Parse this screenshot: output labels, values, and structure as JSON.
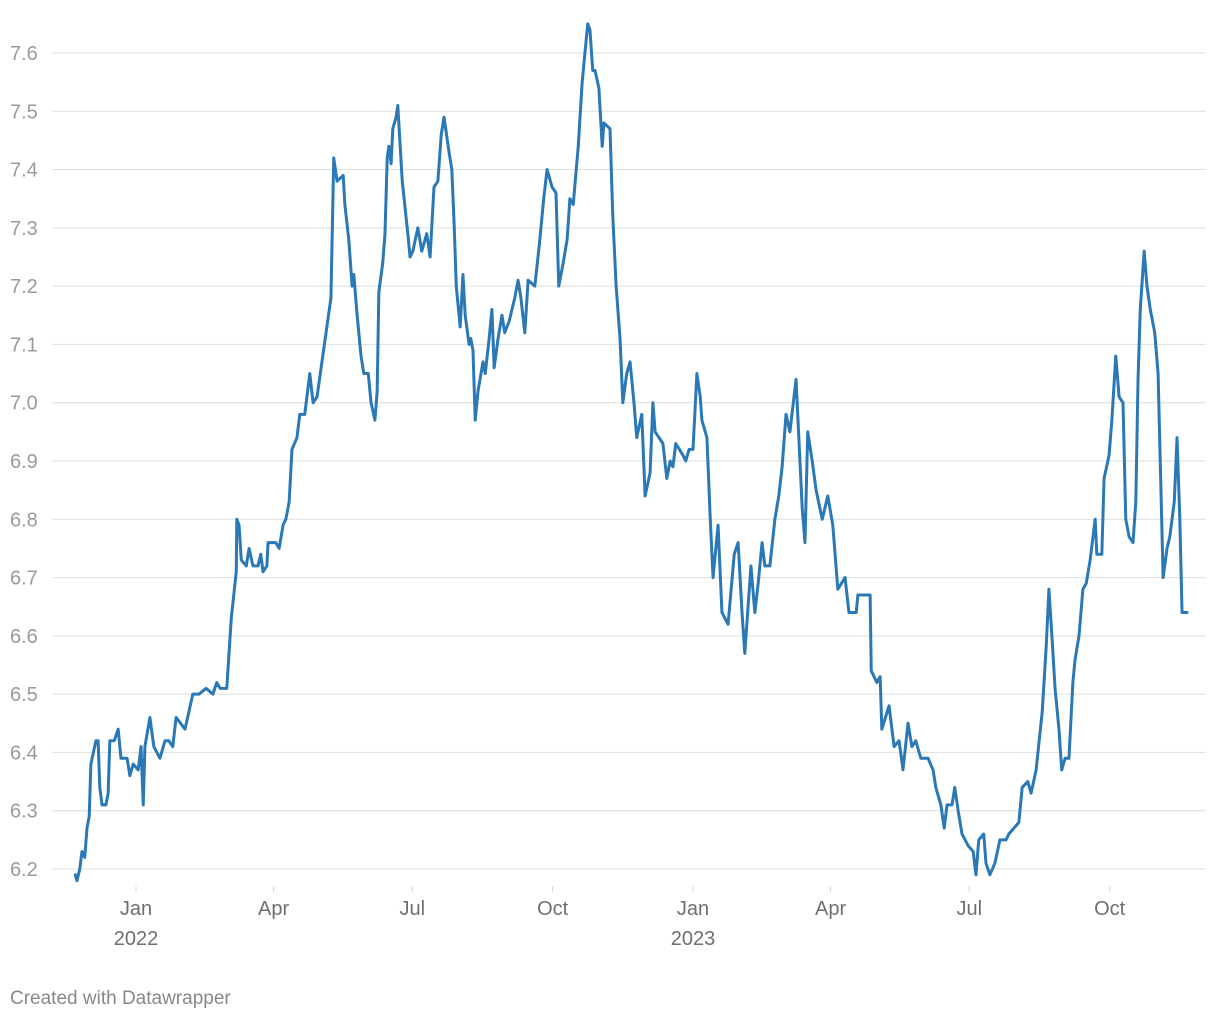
{
  "chart_data": {
    "type": "line",
    "credit": "Created with Datawrapper",
    "xlim": [
      2021.88,
      2023.92
    ],
    "ylim": [
      6.17,
      7.66
    ],
    "xticks": [
      {
        "value": 2022,
        "label": "Jan",
        "sublabel": "2022"
      },
      {
        "value": 2022.247,
        "label": "Apr"
      },
      {
        "value": 2022.496,
        "label": "Jul"
      },
      {
        "value": 2022.748,
        "label": "Oct"
      },
      {
        "value": 2023,
        "label": "Jan",
        "sublabel": "2023"
      },
      {
        "value": 2023.247,
        "label": "Apr"
      },
      {
        "value": 2023.496,
        "label": "Jul"
      },
      {
        "value": 2023.748,
        "label": "Oct"
      }
    ],
    "yticks": [
      6.2,
      6.3,
      6.4,
      6.5,
      6.6,
      6.7,
      6.8,
      6.9,
      {
        "value": 7,
        "label": "7.0"
      },
      7.1,
      7.2,
      7.3,
      7.4,
      7.5,
      7.6
    ],
    "grid": true,
    "x": [
      2021.891,
      2021.894,
      2021.899,
      2021.903,
      2021.908,
      2021.912,
      2021.916,
      2021.919,
      2021.928,
      2021.932,
      2021.935,
      2021.939,
      2021.946,
      2021.95,
      2021.953,
      2021.961,
      2021.968,
      2021.973,
      2021.984,
      2021.989,
      2021.995,
      2022.004,
      2022.009,
      2022.013,
      2022.016,
      2022.025,
      2022.032,
      2022.043,
      2022.052,
      2022.059,
      2022.066,
      2022.072,
      2022.088,
      2022.102,
      2022.113,
      2022.126,
      2022.138,
      2022.145,
      2022.151,
      2022.163,
      2022.171,
      2022.18,
      2022.181,
      2022.185,
      2022.189,
      2022.198,
      2022.203,
      2022.21,
      2022.219,
      2022.224,
      2022.228,
      2022.235,
      2022.237,
      2022.244,
      2022.251,
      2022.257,
      2022.264,
      2022.269,
      2022.275,
      2022.28,
      2022.289,
      2022.294,
      2022.303,
      2022.312,
      2022.318,
      2022.325,
      2022.35,
      2022.355,
      2022.361,
      2022.372,
      2022.375,
      2022.382,
      2022.388,
      2022.391,
      2022.397,
      2022.404,
      2022.409,
      2022.417,
      2022.422,
      2022.429,
      2022.433,
      2022.436,
      2022.443,
      2022.447,
      2022.451,
      2022.454,
      2022.458,
      2022.461,
      2022.467,
      2022.47,
      2022.478,
      2022.488,
      2022.492,
      2022.497,
      2022.506,
      2022.513,
      2022.522,
      2022.528,
      2022.535,
      2022.542,
      2022.548,
      2022.553,
      2022.562,
      2022.567,
      2022.571,
      2022.575,
      2022.582,
      2022.587,
      2022.591,
      2022.598,
      2022.601,
      2022.605,
      2022.609,
      2022.614,
      2022.623,
      2022.627,
      2022.634,
      2022.639,
      2022.643,
      2022.65,
      2022.657,
      2022.662,
      2022.67,
      2022.68,
      2022.686,
      2022.691,
      2022.698,
      2022.704,
      2022.716,
      2022.724,
      2022.732,
      2022.738,
      2022.747,
      2022.754,
      2022.759,
      2022.767,
      2022.774,
      2022.779,
      2022.785,
      2022.794,
      2022.801,
      2022.811,
      2022.815,
      2022.82,
      2022.824,
      2022.831,
      2022.837,
      2022.84,
      2022.851,
      2022.856,
      2022.862,
      2022.869,
      2022.874,
      2022.881,
      2022.887,
      2022.894,
      2022.899,
      2022.908,
      2022.914,
      2022.923,
      2022.928,
      2022.932,
      2022.946,
      2022.953,
      2022.959,
      2022.964,
      2022.969,
      2022.982,
      2022.987,
      2022.993,
      2023.0,
      2023.007,
      2023.013,
      2023.016,
      2023.025,
      2023.031,
      2023.036,
      2023.045,
      2023.052,
      2023.063,
      2023.074,
      2023.081,
      2023.088,
      2023.093,
      2023.104,
      2023.111,
      2023.117,
      2023.124,
      2023.129,
      2023.138,
      2023.147,
      2023.154,
      2023.16,
      2023.167,
      2023.174,
      2023.185,
      2023.196,
      2023.201,
      2023.206,
      2023.214,
      2023.221,
      2023.232,
      2023.242,
      2023.251,
      2023.26,
      2023.273,
      2023.28,
      2023.293,
      2023.296,
      2023.318,
      2023.32,
      2023.33,
      2023.336,
      2023.339,
      2023.352,
      2023.361,
      2023.37,
      2023.377,
      2023.386,
      2023.393,
      2023.4,
      2023.409,
      2023.422,
      2023.431,
      2023.436,
      2023.445,
      2023.451,
      2023.456,
      2023.465,
      2023.47,
      2023.476,
      2023.483,
      2023.494,
      2023.503,
      2023.508,
      2023.513,
      2023.522,
      2023.526,
      2023.533,
      2023.542,
      2023.551,
      2023.562,
      2023.567,
      2023.576,
      2023.585,
      2023.591,
      2023.601,
      2023.607,
      2023.616,
      2023.627,
      2023.634,
      2023.639,
      2023.645,
      2023.65,
      2023.657,
      2023.662,
      2023.668,
      2023.675,
      2023.682,
      2023.686,
      2023.693,
      2023.7,
      2023.706,
      2023.713,
      2023.722,
      2023.725,
      2023.734,
      2023.738,
      2023.747,
      2023.752,
      2023.759,
      2023.765,
      2023.772,
      2023.777,
      2023.783,
      2023.79,
      2023.795,
      2023.799,
      2023.803,
      2023.81,
      2023.815,
      2023.821,
      2023.829,
      2023.835,
      2023.844,
      2023.851,
      2023.856,
      2023.864,
      2023.869,
      2023.874,
      2023.878,
      2023.887
    ],
    "series": [
      {
        "color": "#2a78b5",
        "values": [
          6.19,
          6.18,
          6.2,
          6.23,
          6.22,
          6.27,
          6.29,
          6.38,
          6.42,
          6.42,
          6.34,
          6.31,
          6.31,
          6.33,
          6.42,
          6.42,
          6.44,
          6.39,
          6.39,
          6.36,
          6.38,
          6.37,
          6.41,
          6.31,
          6.41,
          6.46,
          6.41,
          6.39,
          6.42,
          6.42,
          6.41,
          6.46,
          6.44,
          6.5,
          6.5,
          6.51,
          6.5,
          6.52,
          6.51,
          6.51,
          6.63,
          6.71,
          6.8,
          6.79,
          6.73,
          6.72,
          6.75,
          6.72,
          6.72,
          6.74,
          6.71,
          6.72,
          6.76,
          6.76,
          6.76,
          6.75,
          6.79,
          6.8,
          6.83,
          6.92,
          6.94,
          6.98,
          6.98,
          7.05,
          7.0,
          7.01,
          7.18,
          7.42,
          7.38,
          7.39,
          7.34,
          7.28,
          7.2,
          7.22,
          7.15,
          7.08,
          7.05,
          7.05,
          7.0,
          6.97,
          7.02,
          7.19,
          7.24,
          7.29,
          7.42,
          7.44,
          7.41,
          7.47,
          7.49,
          7.51,
          7.38,
          7.29,
          7.25,
          7.26,
          7.3,
          7.26,
          7.29,
          7.25,
          7.37,
          7.38,
          7.46,
          7.49,
          7.43,
          7.4,
          7.31,
          7.2,
          7.13,
          7.22,
          7.15,
          7.1,
          7.11,
          7.09,
          6.97,
          7.02,
          7.07,
          7.05,
          7.11,
          7.16,
          7.06,
          7.11,
          7.15,
          7.12,
          7.14,
          7.18,
          7.21,
          7.18,
          7.12,
          7.21,
          7.2,
          7.27,
          7.35,
          7.4,
          7.37,
          7.36,
          7.2,
          7.24,
          7.28,
          7.35,
          7.34,
          7.44,
          7.55,
          7.65,
          7.64,
          7.57,
          7.57,
          7.54,
          7.44,
          7.48,
          7.47,
          7.32,
          7.2,
          7.11,
          7.0,
          7.05,
          7.07,
          7.0,
          6.94,
          6.98,
          6.84,
          6.88,
          7.0,
          6.95,
          6.93,
          6.87,
          6.9,
          6.89,
          6.93,
          6.91,
          6.9,
          6.92,
          6.92,
          7.05,
          7.01,
          6.97,
          6.94,
          6.8,
          6.7,
          6.79,
          6.64,
          6.62,
          6.74,
          6.76,
          6.64,
          6.57,
          6.72,
          6.64,
          6.69,
          6.76,
          6.72,
          6.72,
          6.8,
          6.84,
          6.89,
          6.98,
          6.95,
          7.04,
          6.82,
          6.76,
          6.95,
          6.9,
          6.85,
          6.8,
          6.84,
          6.79,
          6.68,
          6.7,
          6.64,
          6.64,
          6.67,
          6.67,
          6.54,
          6.52,
          6.53,
          6.44,
          6.48,
          6.41,
          6.42,
          6.37,
          6.45,
          6.41,
          6.42,
          6.39,
          6.39,
          6.37,
          6.34,
          6.31,
          6.27,
          6.31,
          6.31,
          6.34,
          6.3,
          6.26,
          6.24,
          6.23,
          6.19,
          6.25,
          6.26,
          6.21,
          6.19,
          6.21,
          6.25,
          6.25,
          6.26,
          6.27,
          6.28,
          6.34,
          6.35,
          6.33,
          6.37,
          6.47,
          6.58,
          6.68,
          6.59,
          6.51,
          6.44,
          6.37,
          6.39,
          6.39,
          6.52,
          6.56,
          6.6,
          6.68,
          6.69,
          6.73,
          6.8,
          6.74,
          6.74,
          6.87,
          6.91,
          6.97,
          7.08,
          7.01,
          7.0,
          6.8,
          6.77,
          6.76,
          6.83,
          7.04,
          7.16,
          7.26,
          7.2,
          7.16,
          7.12,
          7.05,
          6.7,
          6.75,
          6.77,
          6.83,
          6.94,
          6.8,
          6.64,
          6.64
        ]
      }
    ]
  }
}
